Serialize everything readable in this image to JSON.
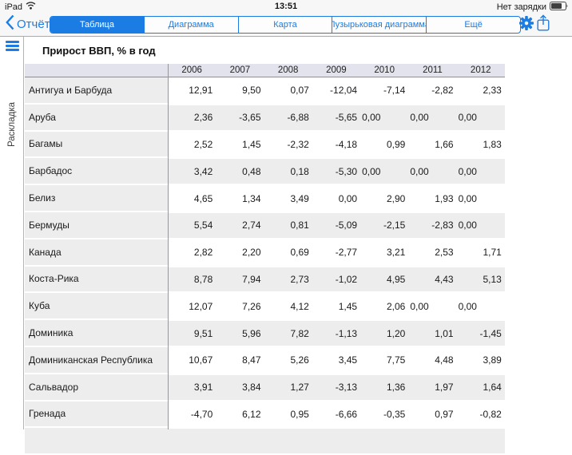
{
  "status_bar": {
    "device": "iPad",
    "time": "13:51",
    "battery_label": "Нет зарядки",
    "icons": {
      "wifi": "wifi-icon",
      "battery": "battery-icon"
    }
  },
  "nav": {
    "back_label": "Отчёты",
    "tabs": [
      {
        "label": "Таблица",
        "selected": true
      },
      {
        "label": "Диаграмма",
        "selected": false
      },
      {
        "label": "Карта",
        "selected": false
      },
      {
        "label": "Пузырьковая диаграмма",
        "selected": false
      },
      {
        "label": "Ещё",
        "selected": false
      }
    ],
    "icons": {
      "settings": "gear-icon",
      "share": "share-icon",
      "back": "back-chevron-icon"
    }
  },
  "sidebar": {
    "panel_label": "Раскладка",
    "icons": {
      "menu": "menu-icon"
    }
  },
  "report": {
    "title": "Прирост ВВП, % в год",
    "columns": [
      "2006",
      "2007",
      "2008",
      "2009",
      "2010",
      "2011",
      "2012"
    ],
    "rows": [
      {
        "name": "Антигуа и Барбуда",
        "values": [
          "12,91",
          "9,50",
          "0,07",
          "-12,04",
          "-7,14",
          "-2,82",
          "2,33"
        ],
        "left": []
      },
      {
        "name": "Аруба",
        "values": [
          "2,36",
          "-3,65",
          "-6,88",
          "-5,65",
          "0,00",
          "0,00",
          "0,00"
        ],
        "left": [
          4,
          5,
          6
        ]
      },
      {
        "name": "Багамы",
        "values": [
          "2,52",
          "1,45",
          "-2,32",
          "-4,18",
          "0,99",
          "1,66",
          "1,83"
        ],
        "left": []
      },
      {
        "name": "Барбадос",
        "values": [
          "3,42",
          "0,48",
          "0,18",
          "-5,30",
          "0,00",
          "0,00",
          "0,00"
        ],
        "left": [
          4,
          5,
          6
        ]
      },
      {
        "name": "Белиз",
        "values": [
          "4,65",
          "1,34",
          "3,49",
          "0,00",
          "2,90",
          "1,93",
          "0,00"
        ],
        "left": [
          6
        ]
      },
      {
        "name": "Бермуды",
        "values": [
          "5,54",
          "2,74",
          "0,81",
          "-5,09",
          "-2,15",
          "-2,83",
          "0,00"
        ],
        "left": [
          6
        ]
      },
      {
        "name": "Канада",
        "values": [
          "2,82",
          "2,20",
          "0,69",
          "-2,77",
          "3,21",
          "2,53",
          "1,71"
        ],
        "left": []
      },
      {
        "name": "Коста-Рика",
        "values": [
          "8,78",
          "7,94",
          "2,73",
          "-1,02",
          "4,95",
          "4,43",
          "5,13"
        ],
        "left": []
      },
      {
        "name": "Куба",
        "values": [
          "12,07",
          "7,26",
          "4,12",
          "1,45",
          "2,06",
          "0,00",
          "0,00"
        ],
        "left": [
          5,
          6
        ]
      },
      {
        "name": "Доминика",
        "values": [
          "9,51",
          "5,96",
          "7,82",
          "-1,13",
          "1,20",
          "1,01",
          "-1,45"
        ],
        "left": []
      },
      {
        "name": "Доминиканская Республика",
        "values": [
          "10,67",
          "8,47",
          "5,26",
          "3,45",
          "7,75",
          "4,48",
          "3,89"
        ],
        "left": []
      },
      {
        "name": "Сальвадор",
        "values": [
          "3,91",
          "3,84",
          "1,27",
          "-3,13",
          "1,36",
          "1,97",
          "1,64"
        ],
        "left": []
      },
      {
        "name": "Гренада",
        "values": [
          "-4,70",
          "6,12",
          "0,95",
          "-6,66",
          "-0,35",
          "0,97",
          "-0,82"
        ],
        "left": []
      }
    ]
  },
  "colors": {
    "accent_blue": "#1b7ce3",
    "topbar_bg": "#f7f7f7",
    "header_band_bg": "#e3e3ed",
    "row_stripe_bg": "#ededed",
    "header_underline": "#8f8f94",
    "column_divider": "#97979b"
  }
}
